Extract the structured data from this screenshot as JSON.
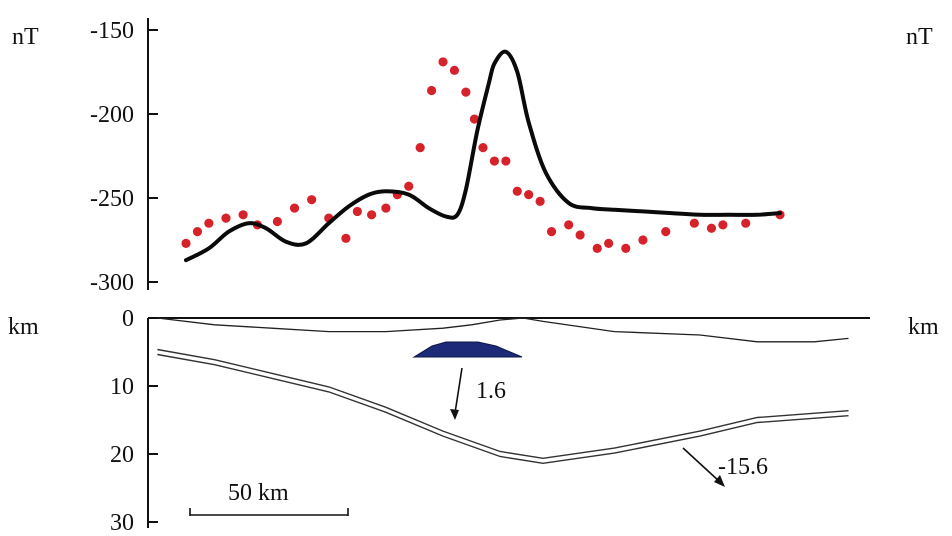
{
  "chart_data": [
    {
      "type": "line",
      "panel": "magnetic-anomaly",
      "ylabel_left": "nT",
      "ylabel_right": "nT",
      "y_ticks": [
        "-150",
        "-200",
        "-250",
        "-300"
      ],
      "ylim": [
        -305,
        -150
      ],
      "xlim_km": [
        0,
        208
      ],
      "series": [
        {
          "style": "solid-black-line",
          "x": [
            0,
            8,
            15,
            22,
            28,
            35,
            42,
            50,
            57,
            64,
            70,
            78,
            85,
            91,
            95,
            98,
            102,
            106,
            108,
            112,
            116,
            120,
            126,
            134,
            142,
            150,
            160,
            170,
            180,
            190,
            200,
            208
          ],
          "y": [
            -287,
            -280,
            -270,
            -265,
            -268,
            -276,
            -277,
            -265,
            -255,
            -248,
            -246,
            -248,
            -256,
            -261,
            -260,
            -245,
            -210,
            -182,
            -170,
            -163,
            -175,
            -205,
            -235,
            -253,
            -256,
            -257,
            -258,
            -259,
            -260,
            -260,
            -260,
            -259
          ]
        },
        {
          "style": "red-dots",
          "x": [
            0,
            4,
            8,
            14,
            20,
            25,
            32,
            38,
            44,
            50,
            56,
            60,
            65,
            70,
            74,
            78,
            82,
            86,
            90,
            94,
            98,
            101,
            104,
            108,
            112,
            116,
            120,
            124,
            128,
            134,
            138,
            144,
            148,
            154,
            160,
            168,
            178,
            184,
            188,
            196,
            208
          ],
          "y": [
            -277,
            -270,
            -265,
            -262,
            -260,
            -266,
            -264,
            -256,
            -251,
            -262,
            -274,
            -258,
            -260,
            -256,
            -248,
            -243,
            -220,
            -186,
            -169,
            -174,
            -187,
            -203,
            -220,
            -228,
            -228,
            -246,
            -248,
            -252,
            -270,
            -266,
            -272,
            -280,
            -277,
            -280,
            -275,
            -270,
            -265,
            -268,
            -266,
            -265,
            -260
          ]
        }
      ]
    },
    {
      "type": "line",
      "panel": "crustal-cross-section",
      "ylabel_left": "km",
      "ylabel_right": "km",
      "y_ticks": [
        "0",
        "10",
        "20",
        "30"
      ],
      "ylim": [
        30,
        0
      ],
      "xlim_km": [
        -10,
        208
      ],
      "series": [
        {
          "style": "thin-line",
          "x": [
            -10,
            10,
            30,
            50,
            70,
            90,
            100,
            110,
            118,
            125,
            150,
            180,
            200,
            220,
            232
          ],
          "y": [
            0,
            1,
            1.5,
            2,
            2,
            1.5,
            1,
            0.3,
            0,
            0.5,
            2,
            2.5,
            3.5,
            3.5,
            3
          ]
        },
        {
          "style": "double-line",
          "x": [
            -10,
            10,
            30,
            50,
            70,
            90,
            110,
            125,
            150,
            180,
            200,
            232
          ],
          "y": [
            5,
            6.5,
            8.5,
            10.5,
            13.5,
            17,
            20,
            21,
            19.5,
            17,
            15,
            14
          ]
        }
      ],
      "body": {
        "label": "1.6",
        "color": "#1c2a78"
      },
      "annotations": [
        "1.6",
        "-15.6"
      ],
      "scalebar": {
        "label": "50 km",
        "length_km": 50
      }
    }
  ]
}
